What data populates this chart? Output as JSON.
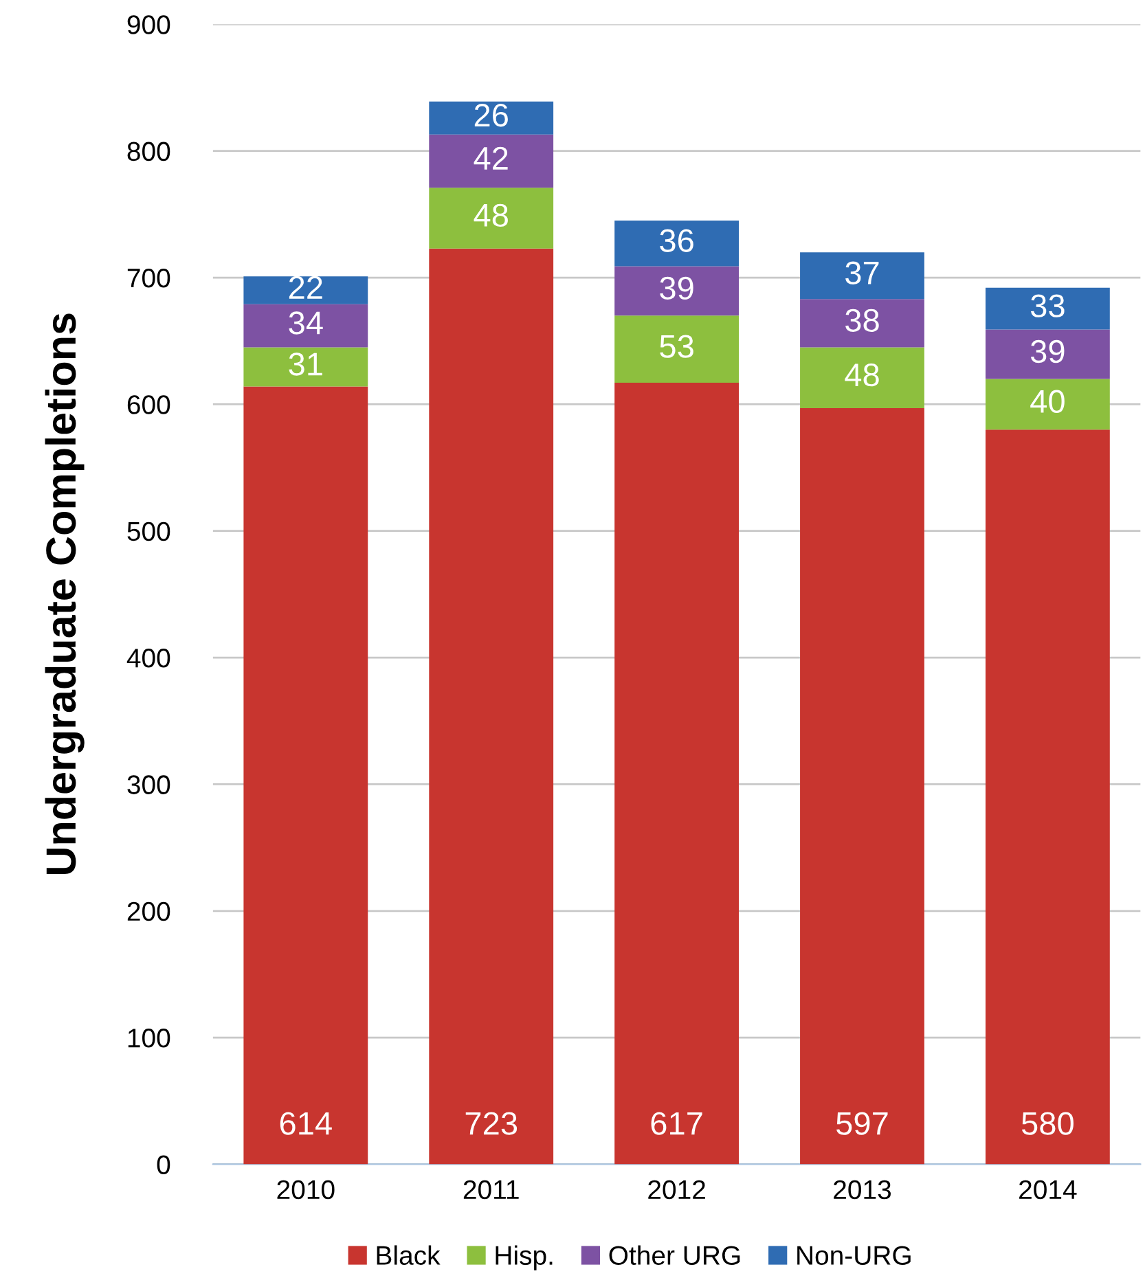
{
  "chart_data": {
    "type": "bar",
    "stacked": true,
    "ylabel": "Undergraduate Completions",
    "categories": [
      "2010",
      "2011",
      "2012",
      "2013",
      "2014"
    ],
    "series": [
      {
        "name": "Black",
        "color": "#c8352f",
        "values": [
          614,
          723,
          617,
          597,
          580
        ]
      },
      {
        "name": "Hisp.",
        "color": "#8dbf3e",
        "values": [
          31,
          48,
          53,
          48,
          40
        ]
      },
      {
        "name": "Other URG",
        "color": "#7d52a3",
        "values": [
          34,
          42,
          39,
          38,
          39
        ]
      },
      {
        "name": "Non-URG",
        "color": "#2f6cb3",
        "values": [
          22,
          26,
          36,
          37,
          33
        ]
      }
    ],
    "ylim": [
      0,
      900
    ],
    "yticks": [
      0,
      100,
      200,
      300,
      400,
      500,
      600,
      700,
      800,
      900
    ],
    "grid": "y",
    "legend": "bottom",
    "data_labels": true
  }
}
